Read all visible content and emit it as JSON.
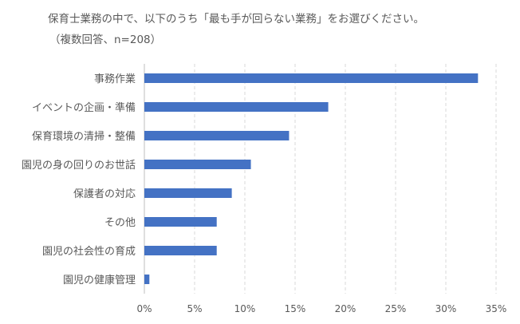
{
  "chart_data": {
    "type": "bar",
    "orientation": "horizontal",
    "title": "保育士業務の中で、以下のうち「最も手が回らない業務」をお選びください。",
    "subtitle": "（複数回答、n=208）",
    "categories": [
      "事務作業",
      "イベントの企画・準備",
      "保育環境の清掃・整備",
      "園児の身の回りのお世話",
      "保護者の対応",
      "その他",
      "園児の社会性の育成",
      "園児の健康管理"
    ],
    "values": [
      33.2,
      18.3,
      14.4,
      10.6,
      8.7,
      7.2,
      7.2,
      0.5
    ],
    "xlim": [
      0,
      35
    ],
    "xticks": [
      0,
      5,
      10,
      15,
      20,
      25,
      30,
      35
    ],
    "xtick_labels": [
      "0%",
      "5%",
      "10%",
      "15%",
      "20%",
      "25%",
      "30%",
      "35%"
    ],
    "unit": "%",
    "grid": "vertical dashed",
    "bar_color": "#4472C4",
    "grid_color": "#d9d9d9",
    "legend": "none"
  }
}
